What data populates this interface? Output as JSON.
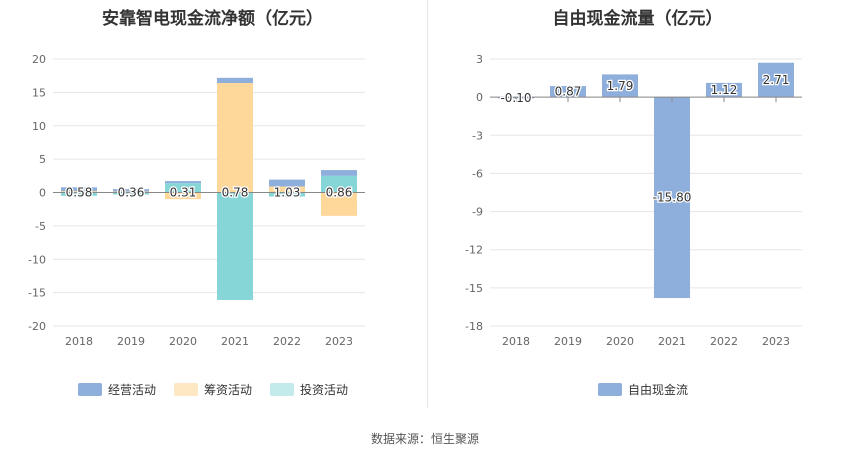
{
  "chart_data": [
    {
      "type": "bar",
      "stacked": true,
      "title": "安靠智电现金流净额（亿元）",
      "categories": [
        "2018",
        "2019",
        "2020",
        "2021",
        "2022",
        "2023"
      ],
      "ylim": [
        -20,
        20
      ],
      "yticks": [
        20,
        15,
        10,
        5,
        0,
        -5,
        -10,
        -15,
        -20
      ],
      "grid": true,
      "legend_position": "bottom",
      "series": [
        {
          "name": "经营活动",
          "color": "#8eaedb",
          "values": [
            0.58,
            0.36,
            0.31,
            0.78,
            1.03,
            0.86
          ],
          "labels": [
            "0.58",
            "0.36",
            "0.31",
            "0.78",
            "1.03",
            "0.86"
          ]
        },
        {
          "name": "筹资活动",
          "color": "#fed89b",
          "values": [
            0.2,
            0.15,
            -1.0,
            16.4,
            0.9,
            -3.5
          ]
        },
        {
          "name": "投资活动",
          "color": "#86d6d8",
          "values": [
            -0.5,
            -0.3,
            1.4,
            -16.1,
            -0.6,
            2.5
          ]
        }
      ]
    },
    {
      "type": "bar",
      "title": "自由现金流量（亿元）",
      "categories": [
        "2018",
        "2019",
        "2020",
        "2021",
        "2022",
        "2023"
      ],
      "ylim": [
        -18,
        3
      ],
      "yticks": [
        3,
        0,
        -3,
        -6,
        -9,
        -12,
        -15,
        -18
      ],
      "grid": true,
      "legend_position": "bottom",
      "series": [
        {
          "name": "自由现金流",
          "color": "#8eaedb",
          "values": [
            -0.1,
            0.87,
            1.79,
            -15.8,
            1.12,
            2.71
          ],
          "labels": [
            "-0.10",
            "0.87",
            "1.79",
            "-15.80",
            "1.12",
            "2.71"
          ]
        }
      ]
    }
  ],
  "source": "数据来源：恒生聚源"
}
